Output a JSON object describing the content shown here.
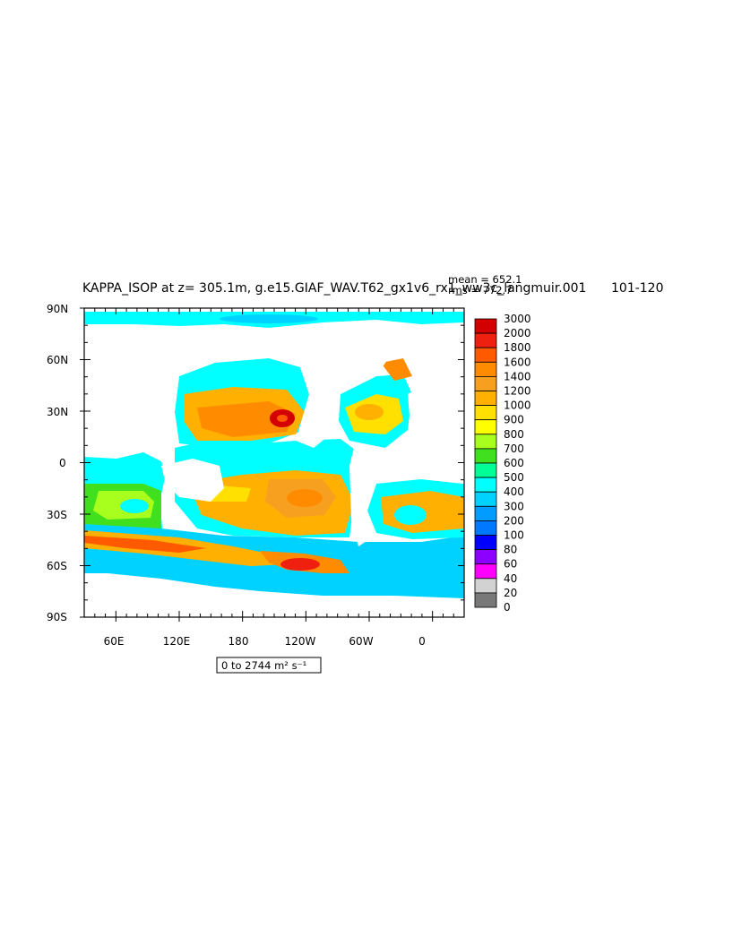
{
  "title": "KAPPA_ISOP at z= 305.1m, g.e15.GIAF_WAV.T62_gx1v6_rx1_ww3c_langmuir.001",
  "years": "101-120",
  "stats": {
    "mean": "mean = 652.1",
    "rms": "rms = 772.7"
  },
  "range_label": "0 to 2744 m² s⁻¹",
  "axes": {
    "lat_ticks": [
      "90N",
      "60N",
      "30N",
      "0",
      "30S",
      "60S",
      "90S"
    ],
    "lon_ticks": [
      "60E",
      "120E",
      "180",
      "120W",
      "60W",
      "0"
    ]
  },
  "colorbar": {
    "levels": [
      "3000",
      "2000",
      "1800",
      "1600",
      "1400",
      "1200",
      "1000",
      "900",
      "800",
      "700",
      "600",
      "500",
      "400",
      "300",
      "200",
      "100",
      "80",
      "60",
      "40",
      "20",
      "0"
    ],
    "colors": [
      "#d40000",
      "#f02010",
      "#ff5a00",
      "#ff8c00",
      "#f7a020",
      "#ffb000",
      "#ffe000",
      "#ffff00",
      "#a8ff1e",
      "#40e01e",
      "#00ff96",
      "#00ffff",
      "#00d2ff",
      "#009cff",
      "#0078ff",
      "#0000ff",
      "#8c00ff",
      "#ff00ff",
      "#d2d2d2",
      "#787878"
    ]
  },
  "chart_data": {
    "type": "heatmap",
    "variable": "KAPPA_ISOP",
    "title": "KAPPA_ISOP at z= 305.1m, g.e15.GIAF_WAV.T62_gx1v6_rx1_ww3c_langmuir.001",
    "years": "101-120",
    "units": "m2 s-1",
    "mean": 652.1,
    "rms": 772.7,
    "min": 0,
    "max": 2744,
    "lon_range": [
      30,
      390
    ],
    "lat_range": [
      -90,
      90
    ],
    "levels": [
      0,
      20,
      40,
      60,
      80,
      100,
      200,
      300,
      400,
      500,
      600,
      700,
      800,
      900,
      1000,
      1200,
      1400,
      1600,
      1800,
      2000,
      3000
    ]
  }
}
